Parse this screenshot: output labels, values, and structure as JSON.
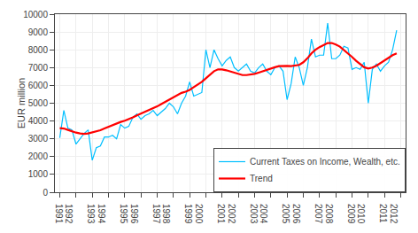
{
  "chart_data": {
    "type": "line",
    "ylabel": "EUR million",
    "x": [
      1991,
      1991.25,
      1991.5,
      1991.75,
      1992,
      1992.25,
      1992.5,
      1992.75,
      1993,
      1993.25,
      1993.5,
      1993.75,
      1994,
      1994.25,
      1994.5,
      1994.75,
      1995,
      1995.25,
      1995.5,
      1995.75,
      1996,
      1996.25,
      1996.5,
      1996.75,
      1997,
      1997.25,
      1997.5,
      1997.75,
      1998,
      1998.25,
      1998.5,
      1998.75,
      1999,
      1999.25,
      1999.5,
      1999.75,
      2000,
      2000.25,
      2000.5,
      2000.75,
      2001,
      2001.25,
      2001.5,
      2001.75,
      2002,
      2002.25,
      2002.5,
      2002.75,
      2003,
      2003.25,
      2003.5,
      2003.75,
      2004,
      2004.25,
      2004.5,
      2004.75,
      2005,
      2005.25,
      2005.5,
      2005.75,
      2006,
      2006.25,
      2006.5,
      2006.75,
      2007,
      2007.25,
      2007.5,
      2007.75,
      2008,
      2008.25,
      2008.5,
      2008.75,
      2009,
      2009.25,
      2009.5,
      2009.75,
      2010,
      2010.25,
      2010.5,
      2010.75,
      2011,
      2011.25,
      2011.5,
      2011.75
    ],
    "series": [
      {
        "name": "Current Taxes on Income, Wealth, etc.",
        "color": "#00BFFF",
        "values": [
          3050,
          4600,
          3600,
          3500,
          2700,
          3000,
          3300,
          3500,
          1800,
          2500,
          2600,
          3100,
          3100,
          3200,
          3000,
          3800,
          3600,
          3700,
          4200,
          4400,
          4100,
          4300,
          4400,
          4600,
          4300,
          4500,
          4700,
          5000,
          4800,
          4400,
          5000,
          5400,
          6200,
          5400,
          5500,
          5600,
          8000,
          7000,
          8000,
          7500,
          7100,
          7400,
          7600,
          7000,
          6800,
          7000,
          7200,
          6800,
          6700,
          7000,
          7200,
          6800,
          6600,
          7000,
          7100,
          6800,
          5200,
          6100,
          7600,
          7000,
          6000,
          7000,
          8600,
          7600,
          7700,
          7700,
          9500,
          7500,
          7500,
          7700,
          8200,
          8100,
          6900,
          7000,
          6900,
          7300,
          5000,
          6900,
          7200,
          6800,
          7100,
          7300,
          8000,
          9100
        ]
      },
      {
        "name": "Trend",
        "color": "#FF0000",
        "values": [
          3600,
          3580,
          3500,
          3420,
          3350,
          3300,
          3280,
          3300,
          3350,
          3400,
          3480,
          3580,
          3680,
          3780,
          3880,
          3950,
          4020,
          4100,
          4200,
          4320,
          4420,
          4500,
          4600,
          4700,
          4820,
          4950,
          5080,
          5200,
          5350,
          5480,
          5580,
          5650,
          5750,
          5900,
          6050,
          6200,
          6400,
          6620,
          6800,
          6900,
          6900,
          6850,
          6780,
          6700,
          6620,
          6580,
          6580,
          6600,
          6650,
          6720,
          6800,
          6880,
          6950,
          7020,
          7080,
          7100,
          7100,
          7080,
          7100,
          7150,
          7300,
          7520,
          7800,
          8000,
          8150,
          8280,
          8380,
          8380,
          8300,
          8180,
          8000,
          7800,
          7600,
          7380,
          7180,
          7020,
          6950,
          7000,
          7100,
          7250,
          7400,
          7550,
          7700,
          7800
        ]
      }
    ],
    "xlim": [
      1990.7,
      2012.3
    ],
    "xticks": [
      1991,
      1992,
      1993,
      1994,
      1995,
      1996,
      1997,
      1998,
      1999,
      2000,
      2001,
      2002,
      2003,
      2004,
      2005,
      2006,
      2007,
      2008,
      2009,
      2010,
      2011,
      2012
    ],
    "ylim": [
      0,
      10000
    ],
    "yticks": [
      0,
      1000,
      2000,
      3000,
      4000,
      5000,
      6000,
      7000,
      8000,
      9000,
      10000
    ],
    "grid": true,
    "legend": "lower right"
  }
}
